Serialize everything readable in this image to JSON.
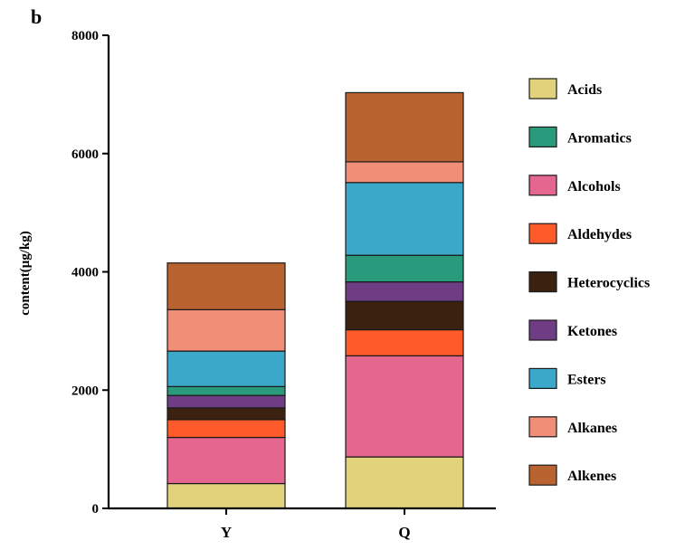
{
  "chart_data": {
    "type": "bar",
    "stacked": true,
    "panel_label": "b",
    "title": "",
    "xlabel": "",
    "ylabel": "content(μg/kg)",
    "ylim": [
      0,
      8000
    ],
    "yticks": [
      0,
      2000,
      4000,
      6000,
      8000
    ],
    "categories": [
      "Y",
      "Q"
    ],
    "legend_position": "right",
    "series": [
      {
        "name": "Acids",
        "color": "#e2d27c",
        "values": [
          420,
          870
        ]
      },
      {
        "name": "Alcohols",
        "color": "#e5668f",
        "values": [
          780,
          1710
        ]
      },
      {
        "name": "Aldehydes",
        "color": "#ff5a2a",
        "values": [
          300,
          440
        ]
      },
      {
        "name": "Heterocyclics",
        "color": "#3b2110",
        "values": [
          200,
          480
        ]
      },
      {
        "name": "Ketones",
        "color": "#6e3d83",
        "values": [
          210,
          330
        ]
      },
      {
        "name": "Aromatics",
        "color": "#2a9a7c",
        "values": [
          150,
          450
        ]
      },
      {
        "name": "Esters",
        "color": "#3ba7c9",
        "values": [
          600,
          1230
        ]
      },
      {
        "name": "Alkanes",
        "color": "#f08e78",
        "values": [
          700,
          350
        ]
      },
      {
        "name": "Alkenes",
        "color": "#b86330",
        "values": [
          790,
          1170
        ]
      }
    ],
    "legend_order": [
      "Acids",
      "Aromatics",
      "Alcohols",
      "Aldehydes",
      "Heterocyclics",
      "Ketones",
      "Esters",
      "Alkanes",
      "Alkenes"
    ]
  }
}
